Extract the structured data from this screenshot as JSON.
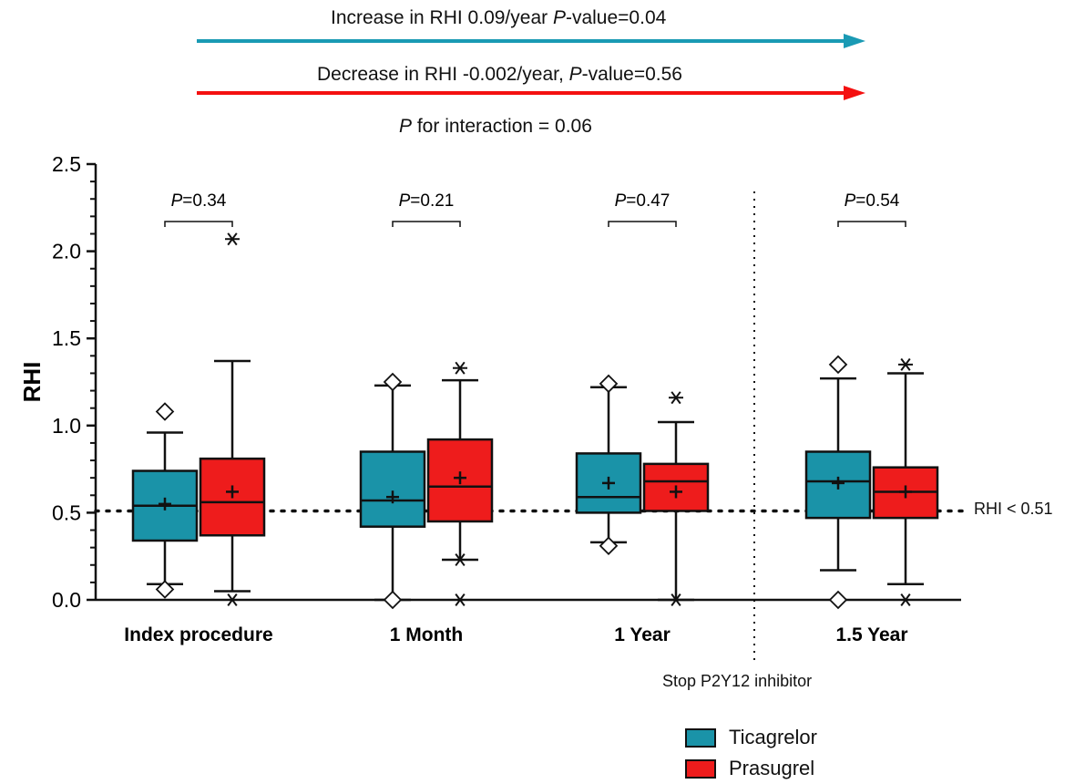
{
  "annotations": {
    "increase": {
      "pre": "Increase in RHI 0.09/year ",
      "italic": "P",
      "post": "-value=0.04",
      "color": "#1a9ab4"
    },
    "decrease": {
      "pre": "Decrease in RHI -0.002/year, ",
      "italic": "P",
      "post": "-value=0.56",
      "color": "#f41010"
    },
    "interaction": {
      "italic": "P",
      "post": " for interaction = 0.06"
    },
    "stop": "Stop P2Y12 inhibitor",
    "threshold": "RHI < 0.51"
  },
  "legend": [
    {
      "label": "Ticagrelor",
      "color": "#1a93a8"
    },
    {
      "label": "Prasugrel",
      "color": "#ee1c1c"
    }
  ],
  "chart_data": {
    "type": "box",
    "ylabel": "RHI",
    "ylim": [
      0,
      2.5
    ],
    "yticks": [
      "0.0",
      "0.5",
      "1.0",
      "1.5",
      "2.0",
      "2.5"
    ],
    "threshold": 0.51,
    "categories": [
      "Index procedure",
      "1 Month",
      "1 Year",
      "1.5 Year"
    ],
    "p_values": [
      {
        "italic": "P",
        "post": "=0.34"
      },
      {
        "italic": "P",
        "post": "=0.21"
      },
      {
        "italic": "P",
        "post": "=0.47"
      },
      {
        "italic": "P",
        "post": "=0.54"
      }
    ],
    "series": [
      {
        "name": "Ticagrelor",
        "color": "#1a93a8",
        "outlier_marker": "diamond",
        "boxes": [
          {
            "whisker_low": 0.09,
            "q1": 0.34,
            "median": 0.54,
            "q3": 0.74,
            "whisker_high": 0.96,
            "mean": 0.55,
            "outliers": [
              1.08,
              0.06
            ]
          },
          {
            "whisker_low": 0.0,
            "q1": 0.42,
            "median": 0.57,
            "q3": 0.85,
            "whisker_high": 1.23,
            "mean": 0.59,
            "outliers": [
              1.25,
              0.0
            ]
          },
          {
            "whisker_low": 0.33,
            "q1": 0.5,
            "median": 0.59,
            "q3": 0.84,
            "whisker_high": 1.22,
            "mean": 0.67,
            "outliers": [
              1.24,
              0.31
            ]
          },
          {
            "whisker_low": 0.17,
            "q1": 0.47,
            "median": 0.68,
            "q3": 0.85,
            "whisker_high": 1.27,
            "mean": 0.67,
            "outliers": [
              1.35,
              0.0
            ]
          }
        ]
      },
      {
        "name": "Prasugrel",
        "color": "#ee1c1c",
        "outlier_marker": "asterisk",
        "boxes": [
          {
            "whisker_low": 0.05,
            "q1": 0.37,
            "median": 0.56,
            "q3": 0.81,
            "whisker_high": 1.37,
            "mean": 0.62,
            "outliers": [
              2.07,
              0.0
            ]
          },
          {
            "whisker_low": 0.23,
            "q1": 0.45,
            "median": 0.65,
            "q3": 0.92,
            "whisker_high": 1.26,
            "mean": 0.7,
            "outliers": [
              1.33,
              0.23,
              0.0
            ]
          },
          {
            "whisker_low": 0.0,
            "q1": 0.51,
            "median": 0.68,
            "q3": 0.78,
            "whisker_high": 1.02,
            "mean": 0.62,
            "outliers": [
              1.16,
              0.0
            ]
          },
          {
            "whisker_low": 0.09,
            "q1": 0.47,
            "median": 0.62,
            "q3": 0.76,
            "whisker_high": 1.3,
            "mean": 0.62,
            "outliers": [
              1.35,
              0.0
            ]
          }
        ]
      }
    ]
  }
}
